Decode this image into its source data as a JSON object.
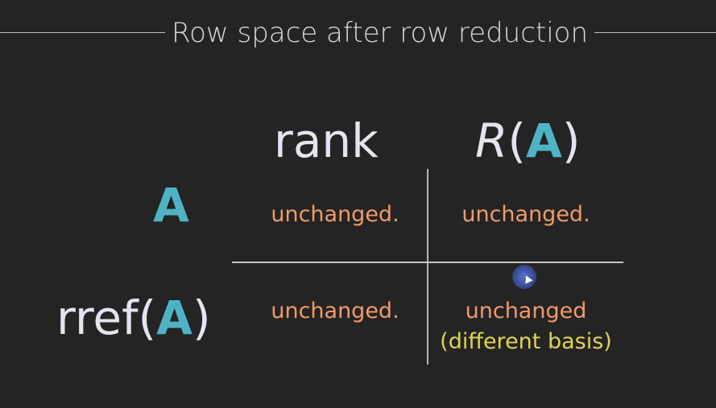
{
  "title": "Row space after row reduction",
  "columns": {
    "rank": "rank",
    "row_space": {
      "prefix": "R",
      "open_paren": "(",
      "matrix": "A",
      "close_paren": ")"
    }
  },
  "rows": {
    "a": {
      "matrix": "A"
    },
    "rref": {
      "prefix": "rref",
      "open_paren": "(",
      "matrix": "A",
      "close_paren": ")"
    }
  },
  "cells": {
    "a_rank": "unchanged.",
    "a_row_space": "unchanged.",
    "rref_rank": "unchanged.",
    "rref_row_space": "unchanged",
    "rref_row_space_note": "(different basis)"
  },
  "colors": {
    "background": "#242424",
    "teal": "#4fb3c6",
    "orange": "#f09a6a",
    "yellow": "#e0d257"
  }
}
